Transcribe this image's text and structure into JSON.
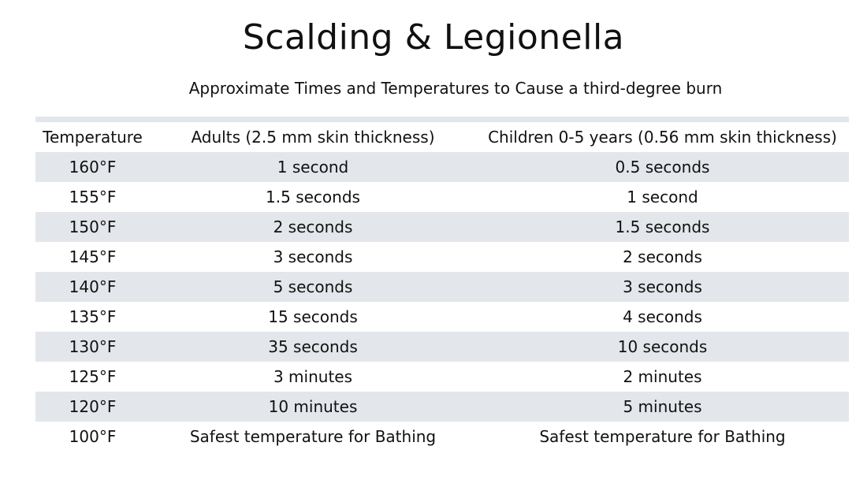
{
  "title": "Scalding & Legionella",
  "subtitle": "Approximate Times and Temperatures to Cause a third-degree burn",
  "table": {
    "headers": [
      "Temperature",
      "Adults (2.5 mm skin thickness)",
      "Children 0-5 years  (0.56 mm skin thickness)"
    ],
    "rows": [
      [
        "160°F",
        "1 second",
        "0.5 seconds"
      ],
      [
        "155°F",
        "1.5 seconds",
        "1 second"
      ],
      [
        "150°F",
        "2 seconds",
        "1.5 seconds"
      ],
      [
        "145°F",
        "3 seconds",
        "2 seconds"
      ],
      [
        "140°F",
        "5 seconds",
        "3 seconds"
      ],
      [
        "135°F",
        "15 seconds",
        "4 seconds"
      ],
      [
        "130°F",
        "35 seconds",
        "10 seconds"
      ],
      [
        "125°F",
        "3 minutes",
        "2 minutes"
      ],
      [
        "120°F",
        "10 minutes",
        "5 minutes"
      ],
      [
        "100°F",
        "Safest temperature for Bathing",
        "Safest temperature for Bathing"
      ]
    ]
  },
  "colors": {
    "row_shade": "#e3e6ea",
    "text": "#111111",
    "background": "#ffffff"
  }
}
